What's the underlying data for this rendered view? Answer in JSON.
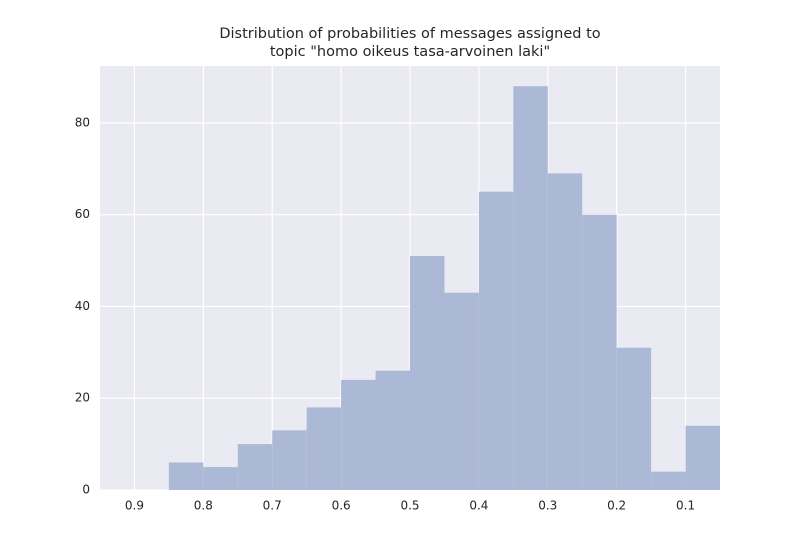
{
  "chart_data": {
    "type": "histogram",
    "title": [
      "Distribution of probabilities of messages assigned to",
      "topic \"homo oikeus tasa-arvoinen laki\""
    ],
    "bins": [
      0.85,
      0.8,
      0.75,
      0.7,
      0.65,
      0.6,
      0.55,
      0.5,
      0.45,
      0.4,
      0.35,
      0.3,
      0.25,
      0.2,
      0.15,
      0.1,
      0.05
    ],
    "values": [
      6,
      5,
      10,
      13,
      18,
      24,
      26,
      51,
      43,
      65,
      88,
      69,
      60,
      31,
      4,
      14
    ],
    "color": "#abb9d7",
    "xlim": [
      0.95,
      0.05
    ],
    "xticks": [
      0.9,
      0.8,
      0.7,
      0.6,
      0.5,
      0.4,
      0.3,
      0.2,
      0.1
    ],
    "ylim": [
      0,
      92.4
    ],
    "yticks": [
      0,
      20,
      40,
      60,
      80
    ],
    "grid": true
  }
}
